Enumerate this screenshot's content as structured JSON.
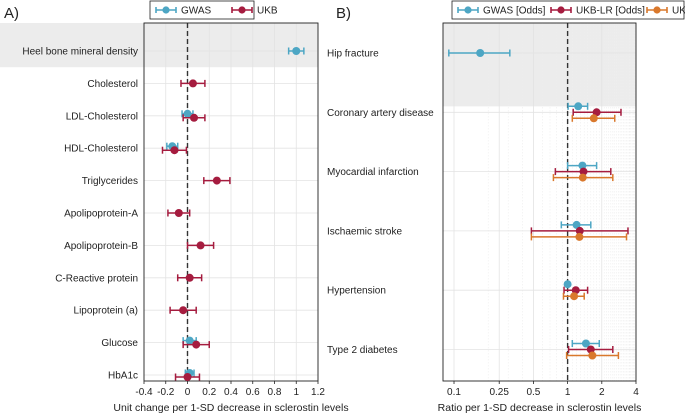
{
  "colors": {
    "gwas": "#4da6c4",
    "ukb": "#a51c3f",
    "ukb_sa": "#d9782c",
    "highlight": "#ececec"
  },
  "chart_data": [
    {
      "panel": "A)",
      "type": "scatter",
      "xlabel": "Unit change per 1-SD decrease in sclerostin levels",
      "xlim": [
        -0.4,
        1.2
      ],
      "xticks": [
        "-0.4",
        "-0.2",
        "0",
        "0.2",
        "0.4",
        "0.6",
        "0.8",
        "1",
        "1.2"
      ],
      "xtick_values": [
        -0.4,
        -0.2,
        0,
        0.2,
        0.4,
        0.6,
        0.8,
        1,
        1.2
      ],
      "reference": 0,
      "legend": [
        "GWAS",
        "UKB"
      ],
      "categories": [
        "Heel bone mineral density",
        "Cholesterol",
        "LDL-Cholesterol",
        "HDL-Cholesterol",
        "Triglycerides",
        "Apolipoprotein-A",
        "Apolipoprotein-B",
        "C-Reactive protein",
        "Lipoprotein (a)",
        "Glucose",
        "HbA1c"
      ],
      "highlight": [
        0
      ],
      "series": [
        {
          "name": "GWAS",
          "estimate": [
            1.0,
            null,
            0.0,
            -0.14,
            null,
            null,
            null,
            null,
            null,
            0.02,
            0.02
          ],
          "lower": [
            0.93,
            null,
            -0.05,
            -0.19,
            null,
            null,
            null,
            null,
            null,
            -0.04,
            -0.02
          ],
          "upper": [
            1.07,
            null,
            0.05,
            -0.09,
            null,
            null,
            null,
            null,
            null,
            0.08,
            0.06
          ]
        },
        {
          "name": "UKB",
          "estimate": [
            null,
            0.05,
            0.06,
            -0.12,
            0.27,
            -0.08,
            0.12,
            0.02,
            -0.04,
            0.08,
            0.0
          ],
          "lower": [
            null,
            -0.06,
            -0.04,
            -0.23,
            0.15,
            -0.18,
            0.0,
            -0.09,
            -0.16,
            -0.04,
            -0.11
          ],
          "upper": [
            null,
            0.16,
            0.16,
            -0.01,
            0.39,
            0.02,
            0.24,
            0.13,
            0.08,
            0.2,
            0.11
          ]
        }
      ]
    },
    {
      "panel": "B)",
      "type": "scatter",
      "xscale": "log",
      "xlabel": "Ratio per 1-SD decrease in sclerostin levels",
      "xlim": [
        0.08,
        4
      ],
      "xticks": [
        "0.1",
        "0.25",
        "0.5",
        "1",
        "2",
        "4"
      ],
      "xtick_values": [
        0.1,
        0.25,
        0.5,
        1,
        2,
        4
      ],
      "reference": 1,
      "legend": [
        "GWAS [Odds]",
        "UKB-LR [Odds]",
        "UKB-SA [Hazard]"
      ],
      "categories": [
        "Hip fracture",
        "Coronary artery disease",
        "Myocardial infarction",
        "Ischaemic stroke",
        "Hypertension",
        "Type 2 diabetes"
      ],
      "highlight": [
        0
      ],
      "series": [
        {
          "name": "GWAS [Odds]",
          "estimate": [
            0.17,
            1.24,
            1.35,
            1.2,
            1.0,
            1.45
          ],
          "lower": [
            0.09,
            1.01,
            1.0,
            0.88,
            0.99,
            1.1
          ],
          "upper": [
            0.31,
            1.5,
            1.8,
            1.6,
            1.02,
            1.9
          ]
        },
        {
          "name": "UKB-LR [Odds]",
          "estimate": [
            null,
            1.8,
            1.38,
            1.28,
            1.18,
            1.6
          ],
          "lower": [
            null,
            1.12,
            0.78,
            0.48,
            0.93,
            1.02
          ],
          "upper": [
            null,
            2.95,
            2.4,
            3.4,
            1.5,
            2.5
          ]
        },
        {
          "name": "UKB-SA [Hazard]",
          "estimate": [
            null,
            1.7,
            1.36,
            1.27,
            1.14,
            1.65
          ],
          "lower": [
            null,
            1.1,
            0.75,
            0.48,
            0.92,
            0.98
          ],
          "upper": [
            null,
            2.6,
            2.5,
            3.3,
            1.4,
            2.8
          ]
        }
      ]
    }
  ]
}
